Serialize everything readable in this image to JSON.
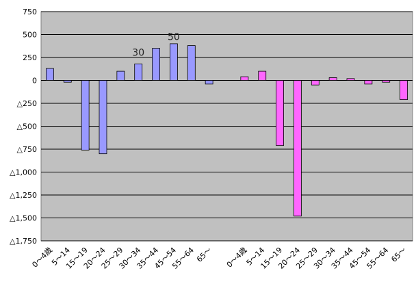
{
  "chart_data": {
    "type": "bar",
    "categories": [
      "0～4歳",
      "5～14",
      "15～19",
      "20～24",
      "25～29",
      "30～34",
      "35～44",
      "45～54",
      "55～64",
      "65～",
      "",
      "0～4歳",
      "5～14",
      "15～19",
      "20～24",
      "25～29",
      "30～34",
      "35～44",
      "45～54",
      "55～64",
      "65～"
    ],
    "series": [
      {
        "color": "#9999ff",
        "values": [
          130,
          -20,
          -760,
          -800,
          100,
          180,
          350,
          400,
          380,
          -40,
          null,
          null,
          null,
          null,
          null,
          null,
          null,
          null,
          null,
          null,
          null
        ]
      },
      {
        "color": "#ff66ff",
        "values": [
          null,
          null,
          null,
          null,
          null,
          null,
          null,
          null,
          null,
          null,
          null,
          40,
          100,
          -710,
          -1480,
          -50,
          30,
          20,
          -40,
          -20,
          -210
        ]
      }
    ],
    "y_tick_labels": [
      "750",
      "500",
      "250",
      "0",
      "△250",
      "△500",
      "△750",
      "△1,000",
      "△1,250",
      "△1,500",
      "△1,750"
    ],
    "y_tick_values": [
      750,
      500,
      250,
      0,
      -250,
      -500,
      -750,
      -1000,
      -1250,
      -1500,
      -1750
    ],
    "ylim": [
      -1750,
      750
    ],
    "grid": true,
    "plot_background": "#c0c0c0",
    "annotations": [
      {
        "text": "30",
        "category_index": 5,
        "y": 270
      },
      {
        "text": "50",
        "category_index": 7,
        "y": 440
      }
    ]
  }
}
